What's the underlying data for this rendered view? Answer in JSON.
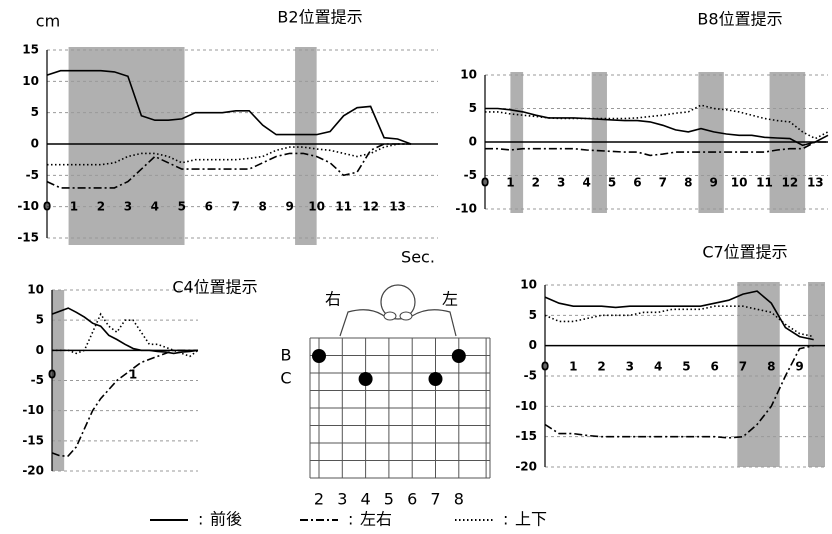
{
  "chart_data": [
    {
      "type": "line",
      "title": "B2位置提示",
      "ylabel": "cm",
      "xlabel": "Sec.",
      "xlim": [
        0,
        14.5
      ],
      "xticks": [
        0,
        1,
        2,
        3,
        4,
        5,
        6,
        7,
        8,
        9,
        10,
        11,
        12,
        13
      ],
      "ylim": [
        -15,
        15
      ],
      "yticks": [
        -15,
        -10,
        -5,
        0,
        5,
        10,
        15
      ],
      "grid": true,
      "shaded": [
        [
          0.8,
          5.1
        ],
        [
          9.2,
          10
        ]
      ],
      "x": [
        0,
        0.5,
        1,
        1.5,
        2,
        2.5,
        3,
        3.5,
        4,
        4.5,
        5,
        5.5,
        6,
        6.5,
        7,
        7.5,
        8,
        8.5,
        9,
        9.5,
        10,
        10.5,
        11,
        11.5,
        12,
        12.5,
        13,
        13.5
      ],
      "series": [
        {
          "name": "前後",
          "color": "#000000",
          "dash": "solid",
          "values": [
            11,
            11.7,
            11.7,
            11.7,
            11.7,
            11.5,
            10.8,
            4.5,
            3.8,
            3.8,
            4,
            5,
            5,
            5,
            5.3,
            5.3,
            3,
            1.5,
            1.5,
            1.5,
            1.5,
            2,
            4.5,
            5.8,
            6,
            1,
            0.8,
            0
          ]
        },
        {
          "name": "左右",
          "color": "#000000",
          "dash": "dashdot",
          "values": [
            -6,
            -7,
            -7,
            -7,
            -7,
            -7,
            -6,
            -4,
            -2,
            -3,
            -4,
            -4,
            -4,
            -4,
            -4,
            -4,
            -3,
            -2,
            -1.5,
            -1.5,
            -2,
            -3,
            -5,
            -4.5,
            -1,
            0,
            0,
            0
          ]
        },
        {
          "name": "上下",
          "color": "#000000",
          "dash": "dotted",
          "values": [
            -3.3,
            -3.3,
            -3.3,
            -3.3,
            -3.3,
            -3,
            -2,
            -1.5,
            -1.5,
            -2,
            -3,
            -2.5,
            -2.5,
            -2.5,
            -2.5,
            -2.3,
            -2,
            -1,
            -0.5,
            -0.5,
            -0.8,
            -1,
            -1.5,
            -2,
            -1.5,
            -0.5,
            0,
            0
          ]
        }
      ]
    },
    {
      "type": "line",
      "title": "B8位置提示",
      "xlim": [
        0,
        13.5
      ],
      "xticks": [
        0,
        1,
        2,
        3,
        4,
        5,
        6,
        7,
        8,
        9,
        10,
        11,
        12,
        13
      ],
      "ylim": [
        -10,
        10
      ],
      "yticks": [
        -10,
        -5,
        0,
        5,
        10
      ],
      "grid": true,
      "shaded": [
        [
          1,
          1.5
        ],
        [
          4.2,
          4.8
        ],
        [
          8.4,
          9.4
        ],
        [
          11.2,
          12.6
        ]
      ],
      "x": [
        0,
        0.5,
        1,
        1.5,
        2,
        2.5,
        3,
        3.5,
        4,
        4.5,
        5,
        5.5,
        6,
        6.5,
        7,
        7.5,
        8,
        8.5,
        9,
        9.5,
        10,
        10.5,
        11,
        11.5,
        12,
        12.5,
        13,
        13.5
      ],
      "series": [
        {
          "name": "前後",
          "color": "#000000",
          "dash": "solid",
          "values": [
            5,
            5,
            4.8,
            4.5,
            4,
            3.6,
            3.6,
            3.6,
            3.5,
            3.4,
            3.3,
            3.2,
            3.2,
            3,
            2.5,
            1.8,
            1.5,
            2,
            1.5,
            1.2,
            1,
            1,
            0.7,
            0.6,
            0.5,
            -0.5,
            0,
            1
          ]
        },
        {
          "name": "左右",
          "color": "#000000",
          "dash": "dashdot",
          "values": [
            -1,
            -1,
            -1.2,
            -1,
            -1,
            -1,
            -1,
            -1,
            -1.2,
            -1.3,
            -1.4,
            -1.5,
            -1.5,
            -2,
            -1.8,
            -1.5,
            -1.5,
            -1.5,
            -1.5,
            -1.5,
            -1.5,
            -1.5,
            -1.5,
            -1.2,
            -1,
            -1,
            0,
            0
          ]
        },
        {
          "name": "上下",
          "color": "#000000",
          "dash": "dotted",
          "values": [
            4.5,
            4.5,
            4.2,
            4,
            3.8,
            3.6,
            3.5,
            3.5,
            3.5,
            3.5,
            3.5,
            3.5,
            3.6,
            3.8,
            4,
            4.3,
            4.5,
            5.5,
            5,
            4.8,
            4.5,
            4,
            3.5,
            3.2,
            3,
            1.5,
            0.5,
            1.5
          ]
        }
      ]
    },
    {
      "type": "line",
      "title": "C4位置提示",
      "xlim": [
        0,
        1.8
      ],
      "xticks": [
        0,
        1
      ],
      "ylim": [
        -20,
        10
      ],
      "yticks": [
        -20,
        -15,
        -10,
        -5,
        0,
        5,
        10
      ],
      "grid": true,
      "shaded": [
        [
          0,
          0.15
        ]
      ],
      "x": [
        0,
        0.1,
        0.2,
        0.3,
        0.4,
        0.5,
        0.6,
        0.7,
        0.8,
        0.9,
        1,
        1.1,
        1.2,
        1.3,
        1.4,
        1.5,
        1.6,
        1.7,
        1.8
      ],
      "series": [
        {
          "name": "前後",
          "color": "#000000",
          "dash": "solid",
          "values": [
            6,
            6.5,
            7,
            6.3,
            5.5,
            4.5,
            4,
            2.5,
            1.8,
            1,
            0.3,
            0,
            0,
            -0.2,
            -0.3,
            -0.5,
            -0.3,
            -0.2,
            0
          ]
        },
        {
          "name": "左右",
          "color": "#000000",
          "dash": "dashdot",
          "values": [
            -17,
            -17.5,
            -17.5,
            -16,
            -13,
            -10,
            -8,
            -6.5,
            -5,
            -4,
            -3,
            -2,
            -1.5,
            -1,
            -0.5,
            0,
            0,
            0,
            0
          ]
        },
        {
          "name": "上下",
          "color": "#000000",
          "dash": "dotted",
          "values": [
            0,
            0,
            0,
            -0.5,
            0,
            3,
            6,
            4,
            3,
            5,
            5,
            3,
            1,
            1,
            0.5,
            0,
            -0.5,
            -1,
            0
          ]
        }
      ]
    },
    {
      "type": "line",
      "title": "C7位置提示",
      "xlim": [
        0,
        9.9
      ],
      "xticks": [
        0,
        1,
        2,
        3,
        4,
        5,
        6,
        7,
        8,
        9
      ],
      "ylim": [
        -20,
        10
      ],
      "yticks": [
        -20,
        -15,
        -10,
        -5,
        0,
        5,
        10
      ],
      "grid": true,
      "shaded": [
        [
          6.8,
          8.3
        ],
        [
          9.3,
          9.9
        ]
      ],
      "x": [
        0,
        0.5,
        1,
        1.5,
        2,
        2.5,
        3,
        3.5,
        4,
        4.5,
        5,
        5.5,
        6,
        6.5,
        7,
        7.5,
        8,
        8.5,
        9,
        9.5
      ],
      "series": [
        {
          "name": "前後",
          "color": "#000000",
          "dash": "solid",
          "values": [
            8,
            7,
            6.5,
            6.5,
            6.5,
            6.3,
            6.5,
            6.5,
            6.5,
            6.5,
            6.5,
            6.5,
            7,
            7.5,
            8.5,
            9,
            7,
            3,
            1.5,
            1
          ]
        },
        {
          "name": "左右",
          "color": "#000000",
          "dash": "dashdot",
          "values": [
            -13,
            -14.5,
            -14.5,
            -14.8,
            -15,
            -15,
            -15,
            -15,
            -15,
            -15,
            -15,
            -15,
            -15,
            -15.2,
            -15,
            -13,
            -10,
            -5,
            -0.5,
            0
          ]
        },
        {
          "name": "上下",
          "color": "#000000",
          "dash": "dotted",
          "values": [
            5,
            4,
            4,
            4.5,
            5,
            5,
            5,
            5.5,
            5.5,
            6,
            6,
            6,
            6.5,
            6.5,
            6.5,
            6,
            5.5,
            3.5,
            2,
            1.5
          ]
        }
      ]
    }
  ],
  "legend_separator": ":",
  "diagram": {
    "left": "右",
    "right": "左",
    "rows": [
      "B",
      "C"
    ],
    "columns": [
      2,
      3,
      4,
      5,
      6,
      7,
      8
    ],
    "points": [
      {
        "row": 0,
        "column": 0
      },
      {
        "row": 0,
        "column": 6
      },
      {
        "row": 1,
        "column": 2
      },
      {
        "row": 1,
        "column": 5
      }
    ]
  }
}
